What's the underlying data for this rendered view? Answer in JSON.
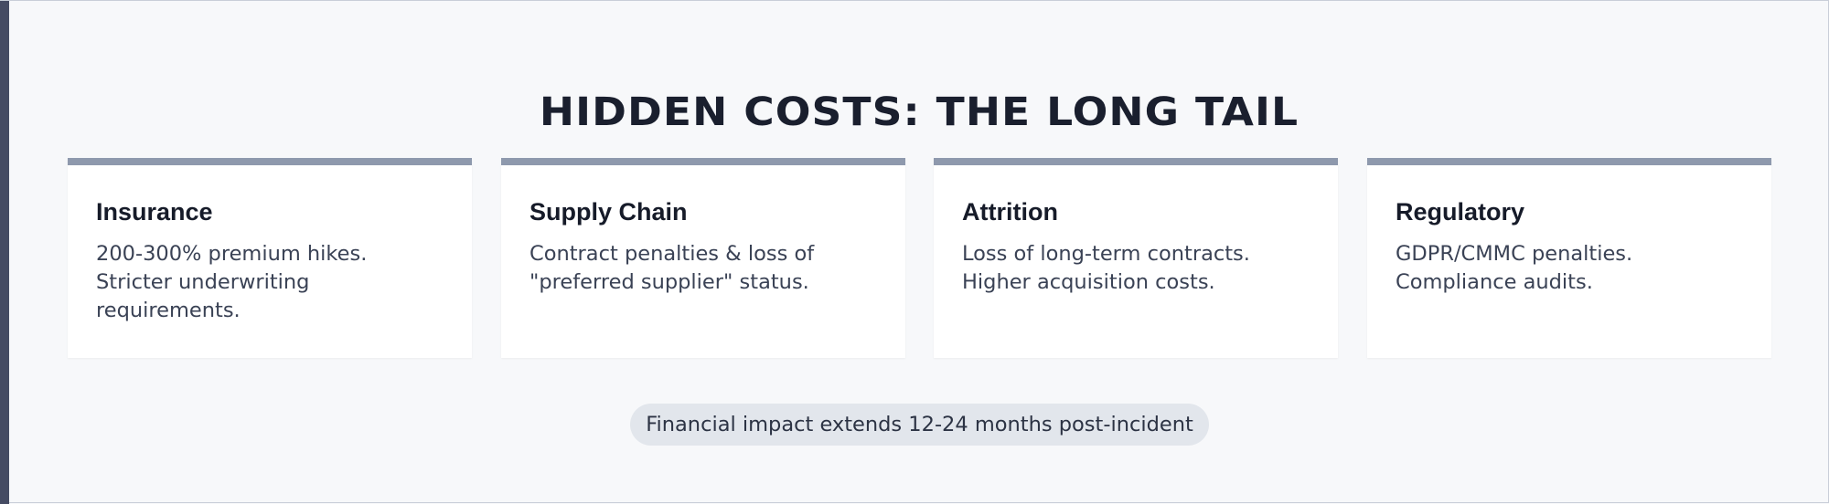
{
  "slide": {
    "title": "HIDDEN COSTS: THE LONG TAIL",
    "cards": [
      {
        "title": "Insurance",
        "body": "200-300% premium hikes. Stricter underwriting requirements."
      },
      {
        "title": "Supply Chain",
        "body": "Contract penalties & loss of \"preferred supplier\" status."
      },
      {
        "title": "Attrition",
        "body": "Loss of long-term contracts. Higher acquisition costs."
      },
      {
        "title": "Regulatory",
        "body": "GDPR/CMMC penalties. Compliance audits."
      }
    ],
    "footnote": "Financial impact extends 12-24 months post-incident"
  },
  "colors": {
    "background": "#f7f8fa",
    "accent_bar": "#454b63",
    "card_top_border": "#8e99ad",
    "card_background": "#ffffff",
    "pill_background": "#e2e6ec",
    "heading_text": "#1a1f2e",
    "body_text": "#3a4255"
  }
}
